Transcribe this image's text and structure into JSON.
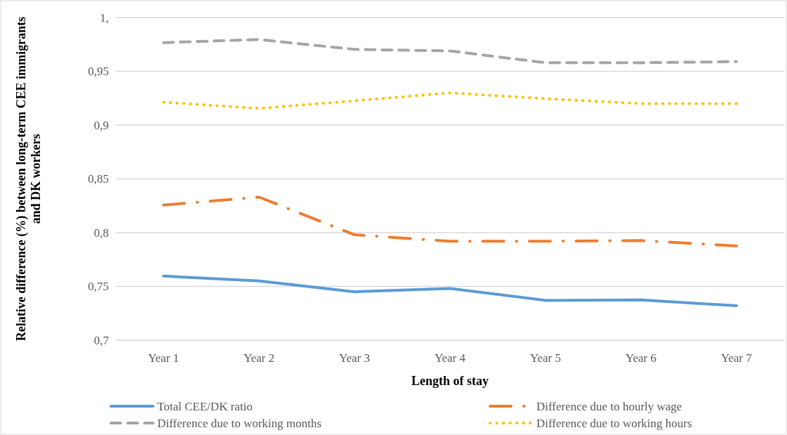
{
  "chart_data": {
    "type": "line",
    "xlabel": "Length of stay",
    "ylabel": "Relative difference (%) between long-term CEE immigrants and DK workers",
    "categories": [
      "Year 1",
      "Year 2",
      "Year 3",
      "Year 4",
      "Year 5",
      "Year 6",
      "Year 7"
    ],
    "series": [
      {
        "name": "Total CEE/DK ratio",
        "color": "#5b9bd5",
        "line_style": "solid",
        "values": [
          0.7596,
          0.755,
          0.745,
          0.748,
          0.737,
          0.7374,
          0.732
        ]
      },
      {
        "name": "Difference due to hourly wage",
        "color": "#ed7d31",
        "line_style": "dashdot",
        "values": [
          0.8256,
          0.833,
          0.798,
          0.792,
          0.792,
          0.7926,
          0.7876
        ]
      },
      {
        "name": "Difference due to working months",
        "color": "#a5a5a5",
        "line_style": "dashed",
        "values": [
          0.9767,
          0.9796,
          0.9704,
          0.969,
          0.958,
          0.958,
          0.959
        ]
      },
      {
        "name": "Difference due to working hours",
        "color": "#ffc000",
        "line_style": "dotted",
        "values": [
          0.9213,
          0.9155,
          0.9226,
          0.93,
          0.9246,
          0.92,
          0.92
        ]
      }
    ],
    "ylim": [
      0.7,
      1.0
    ],
    "yticks": [
      {
        "value": 0.7,
        "label": "0,7"
      },
      {
        "value": 0.75,
        "label": "0,75"
      },
      {
        "value": 0.8,
        "label": "0,8"
      },
      {
        "value": 0.85,
        "label": "0,85"
      },
      {
        "value": 0.9,
        "label": "0,9"
      },
      {
        "value": 0.95,
        "label": "0,95"
      },
      {
        "value": 1.0,
        "label": "1,"
      }
    ],
    "grid": "y",
    "legend": "bottom"
  }
}
